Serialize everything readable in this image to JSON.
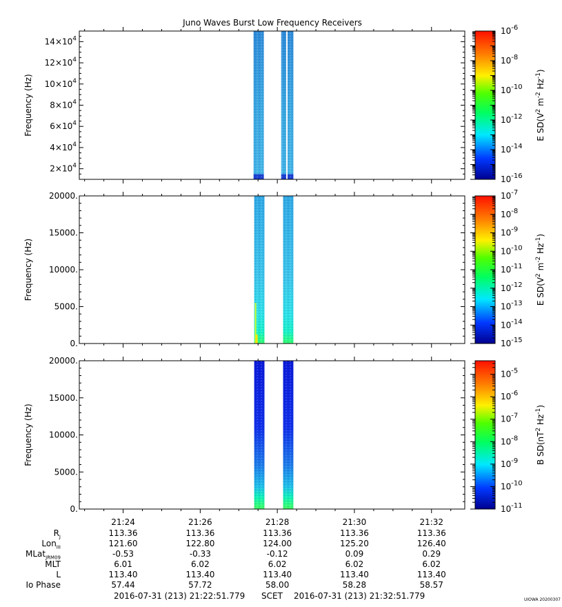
{
  "chart_data": [
    {
      "type": "heatmap",
      "title": "Juno Waves Burst Low Frequency Receivers",
      "ylabel": "Frequency (Hz)",
      "ylim": [
        10000,
        150000
      ],
      "ytick_mantissas": [
        "2",
        "4",
        "6",
        "8",
        "10",
        "12",
        "14"
      ],
      "ytick_values": [
        20000,
        40000,
        60000,
        80000,
        100000,
        120000,
        140000
      ],
      "ytick_exponent": "4",
      "colorbar": {
        "label_base": "E SD(V",
        "label_sup1": "2",
        "label_mid": " m",
        "label_sup2": "-2",
        "label_mid2": " Hz",
        "label_sup3": "-1",
        "label_end": ")",
        "range_log10": [
          -16,
          -6
        ],
        "tick_exponents": [
          "-6",
          "-8",
          "-10",
          "-12",
          "-14",
          "-16"
        ]
      },
      "bursts": [
        {
          "start": "21:27:23",
          "end": "21:27:39",
          "gap_after": false
        },
        {
          "start": "21:28:06",
          "end": "21:28:14",
          "gap_after": true
        },
        {
          "start": "21:28:16",
          "end": "21:28:25",
          "gap_after": false
        }
      ],
      "intensity_log10_approx": -13.8
    },
    {
      "type": "heatmap",
      "ylabel": "Frequency (Hz)",
      "ylim": [
        0,
        20000
      ],
      "ytick_labels": [
        "0.",
        "5000.",
        "10000.",
        "15000.",
        "20000."
      ],
      "ytick_values": [
        0,
        5000,
        10000,
        15000,
        20000
      ],
      "colorbar": {
        "label_base": "E SD(V",
        "label_sup1": "2",
        "label_mid": " m",
        "label_sup2": "-2",
        "label_mid2": " Hz",
        "label_sup3": "-1",
        "label_end": ")",
        "range_log10": [
          -15,
          -7
        ],
        "tick_exponents": [
          "-7",
          "-8",
          "-9",
          "-10",
          "-11",
          "-12",
          "-13",
          "-14",
          "-15"
        ]
      },
      "bursts": [
        {
          "start": "21:27:24",
          "end": "21:27:40"
        },
        {
          "start": "21:28:09",
          "end": "21:28:25"
        }
      ],
      "intensity_log10_approx": -13.2,
      "low_freq_enhancement_hz": 1500
    },
    {
      "type": "heatmap",
      "ylabel": "Frequency (Hz)",
      "ylim": [
        0,
        20000
      ],
      "ytick_labels": [
        "0.",
        "5000.",
        "10000.",
        "15000.",
        "20000."
      ],
      "ytick_values": [
        0,
        5000,
        10000,
        15000,
        20000
      ],
      "colorbar": {
        "label_base": "B SD(nT",
        "label_sup1": "2",
        "label_mid": " Hz",
        "label_sup2": "-1",
        "label_end": ")",
        "range_log10": [
          -11,
          -4.4
        ],
        "tick_exponents": [
          "-5",
          "-6",
          "-7",
          "-8",
          "-9",
          "-10",
          "-11"
        ]
      },
      "bursts": [
        {
          "start": "21:27:24",
          "end": "21:27:40"
        },
        {
          "start": "21:28:09",
          "end": "21:28:25"
        }
      ],
      "intensity_log10_approx": -10.3,
      "low_freq_enhancement_hz": 3000
    }
  ],
  "time_axis": {
    "start": "21:22:51.779",
    "end": "21:32:51.779",
    "tick_labels": [
      "21:24",
      "21:26",
      "21:28",
      "21:30",
      "21:32"
    ]
  },
  "ephemeris": {
    "rows": [
      {
        "label": "R",
        "sub": "J",
        "values": [
          "113.36",
          "113.36",
          "113.36",
          "113.36",
          "113.36"
        ]
      },
      {
        "label": "Lon",
        "sub": "III",
        "values": [
          "121.60",
          "122.80",
          "124.00",
          "125.20",
          "126.40"
        ]
      },
      {
        "label": "MLat",
        "sub": "JRM09",
        "values": [
          "-0.53",
          "-0.33",
          "-0.12",
          "0.09",
          "0.29"
        ]
      },
      {
        "label": "MLT",
        "sub": "",
        "values": [
          "6.01",
          "6.02",
          "6.02",
          "6.02",
          "6.02"
        ]
      },
      {
        "label": "L",
        "sub": "",
        "values": [
          "113.40",
          "113.40",
          "113.40",
          "113.40",
          "113.40"
        ]
      },
      {
        "label": "Io Phase",
        "sub": "",
        "values": [
          "57.44",
          "57.72",
          "58.00",
          "58.28",
          "58.57"
        ]
      }
    ]
  },
  "footer": {
    "start_text": "2016-07-31 (213) 21:22:51.779",
    "scet": "SCET",
    "end_text": "2016-07-31 (213) 21:32:51.779",
    "stamp": "UIOWA 20200307"
  }
}
